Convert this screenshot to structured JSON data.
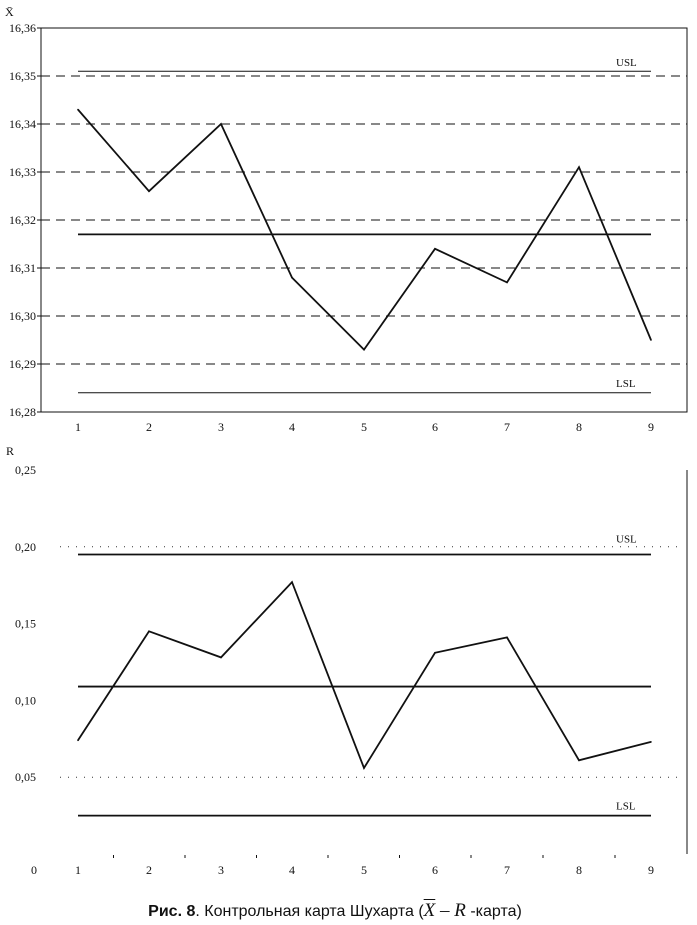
{
  "chart_data": [
    {
      "type": "line",
      "ylabel": "X̄",
      "ylim": [
        16.28,
        16.36
      ],
      "y_ticks": [
        "16,28",
        "16,29",
        "16,30",
        "16,31",
        "16,32",
        "16,33",
        "16,34",
        "16,35",
        "16,36"
      ],
      "x": [
        "1",
        "2",
        "3",
        "4",
        "5",
        "6",
        "7",
        "8",
        "9"
      ],
      "series": [
        {
          "name": "X̄",
          "values": [
            16.343,
            16.326,
            16.34,
            16.308,
            16.293,
            16.314,
            16.307,
            16.331,
            16.295
          ]
        }
      ],
      "center_line": 16.317,
      "usl": {
        "label": "USL",
        "value": 16.351
      },
      "lsl": {
        "label": "LSL",
        "value": 16.284
      },
      "grid": "dashed horizontal"
    },
    {
      "type": "line",
      "ylabel": "R",
      "ylim": [
        0,
        0.25
      ],
      "y_ticks": [
        "0",
        "0,05",
        "0,10",
        "0,15",
        "0,20",
        "0,25"
      ],
      "x": [
        "1",
        "2",
        "3",
        "4",
        "5",
        "6",
        "7",
        "8",
        "9"
      ],
      "series": [
        {
          "name": "R",
          "values": [
            0.074,
            0.145,
            0.128,
            0.177,
            0.056,
            0.131,
            0.141,
            0.061,
            0.073
          ]
        }
      ],
      "center_line": 0.109,
      "usl": {
        "label": "USL",
        "value": 0.195
      },
      "lsl": {
        "label": "LSL",
        "value": 0.025
      },
      "grid": "dotted horizontal at 0,05 and 0,20"
    }
  ],
  "caption": {
    "prefix": "Рис. 8",
    "text": ". Контрольная карта Шухарта (",
    "xbar": "X",
    "minus": " – ",
    "r": "R",
    "suffix": " -карта)"
  }
}
